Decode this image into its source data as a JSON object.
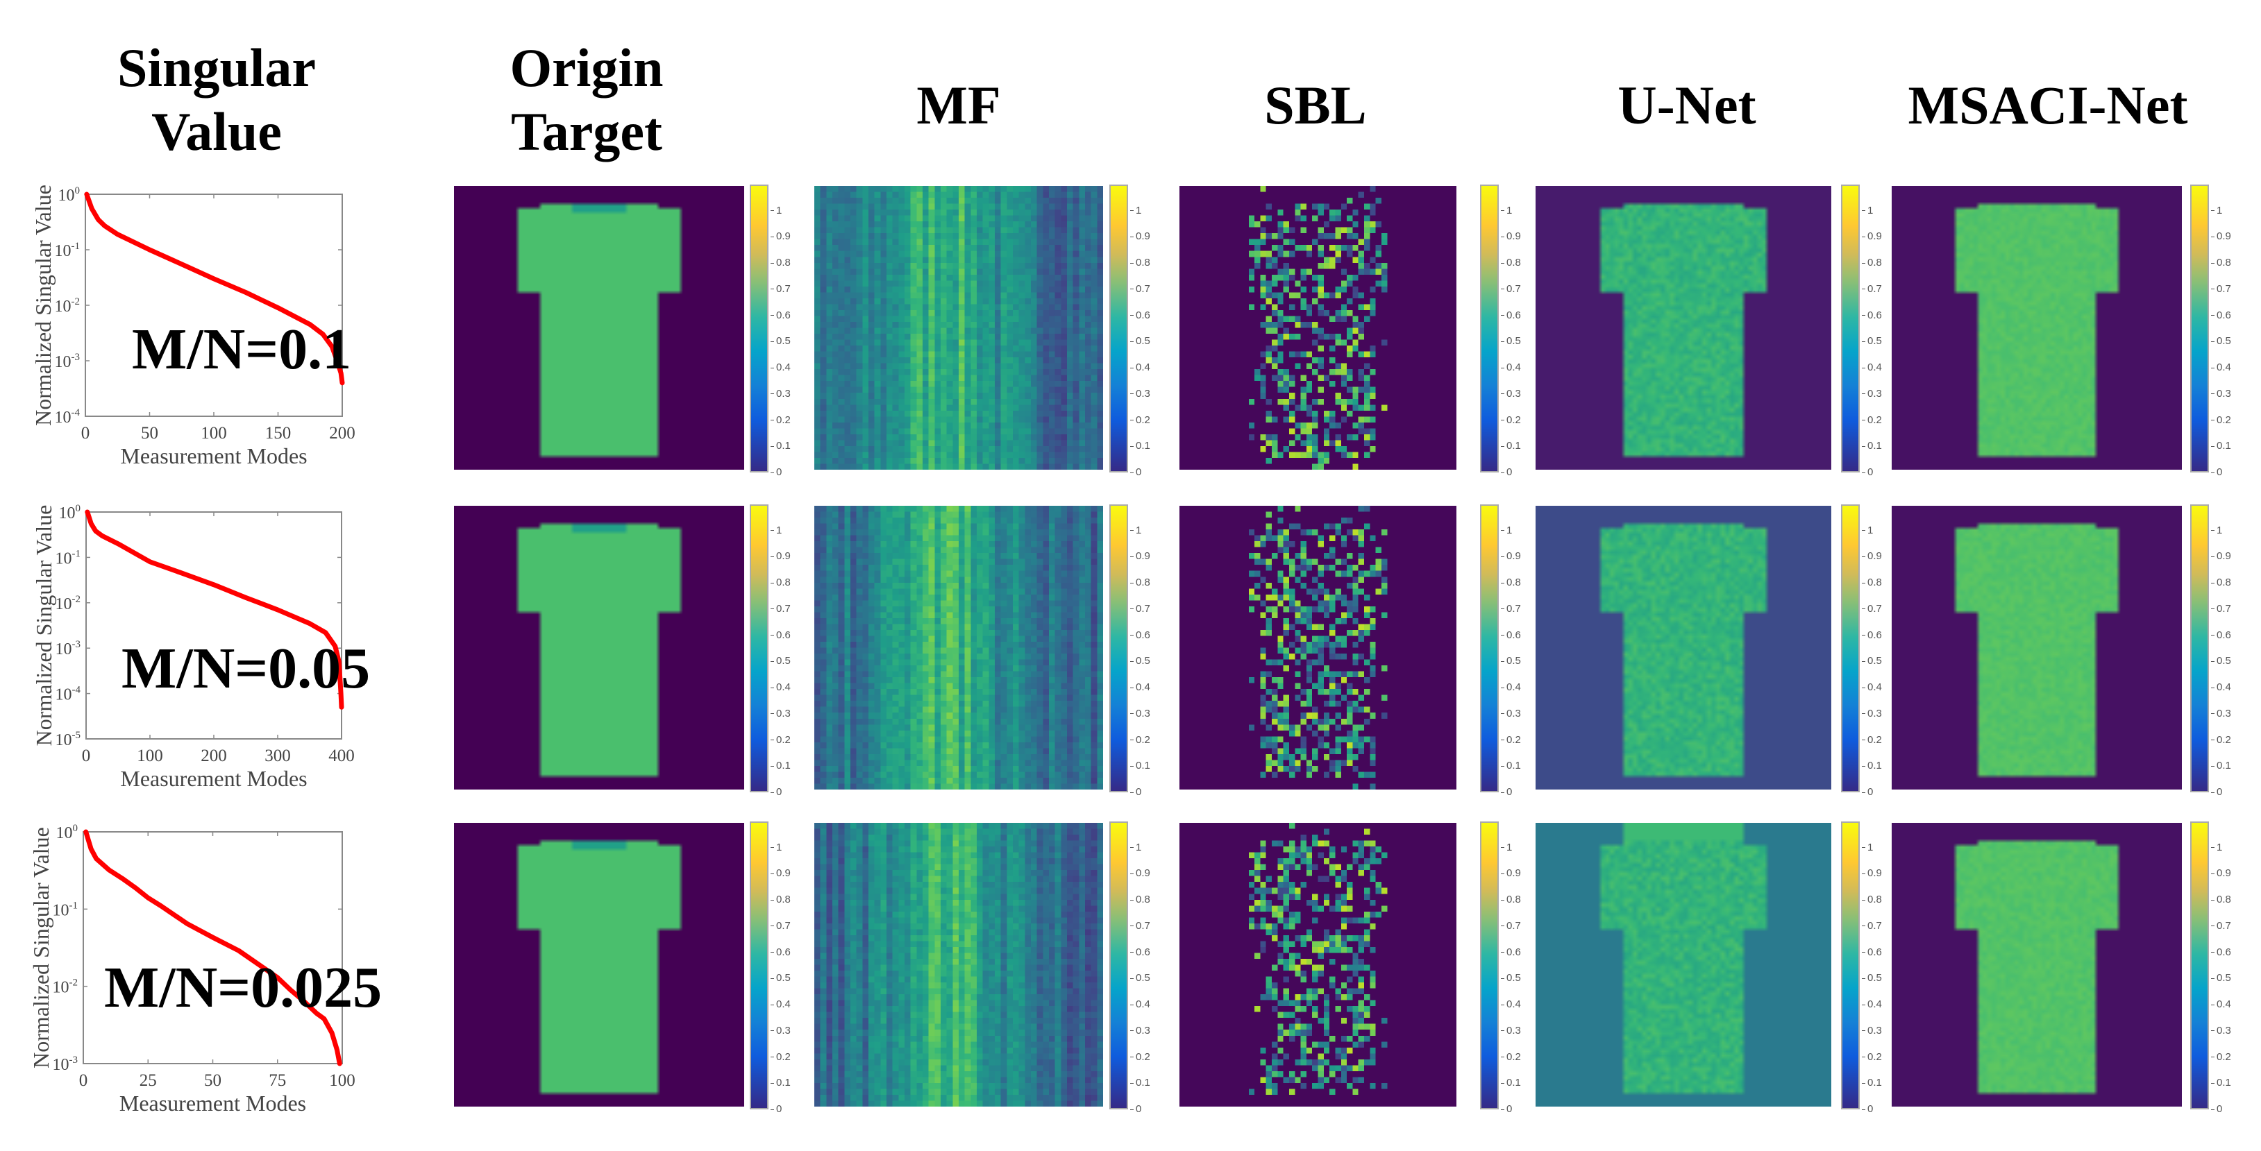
{
  "headers": {
    "singular_value": [
      "Singular",
      "Value"
    ],
    "origin_target": [
      "Origin",
      "Target"
    ],
    "mf": "MF",
    "sbl": "SBL",
    "unet": "U-Net",
    "msaci": "MSACI-Net"
  },
  "rows": [
    {
      "ratio_label": "M/N=0.1"
    },
    {
      "ratio_label": "M/N=0.05"
    },
    {
      "ratio_label": "M/N=0.025"
    }
  ],
  "colorbar": {
    "ticks": [
      "0",
      "0.1",
      "0.2",
      "0.3",
      "0.4",
      "0.5",
      "0.6",
      "0.7",
      "0.8",
      "0.9",
      "1"
    ],
    "max": 1.1
  },
  "chart_data": [
    {
      "type": "line",
      "title": "M/N=0.1",
      "xlabel": "Measurement Modes",
      "ylabel": "Normalized Singular Value",
      "yscale": "log",
      "xlim": [
        0,
        200
      ],
      "ylim": [
        0.0001,
        1
      ],
      "xticks": [
        "0",
        "50",
        "100",
        "150",
        "200"
      ],
      "yticks_exp": [
        "0",
        "-1",
        "-2",
        "-3",
        "-4"
      ],
      "series": [
        {
          "name": "singular values",
          "color": "#ff0000",
          "x": [
            1,
            5,
            10,
            15,
            25,
            50,
            75,
            100,
            125,
            150,
            175,
            185,
            192,
            196,
            199,
            200
          ],
          "y": [
            1,
            0.55,
            0.35,
            0.27,
            0.19,
            0.1,
            0.055,
            0.03,
            0.017,
            0.009,
            0.0045,
            0.003,
            0.0018,
            0.001,
            0.0006,
            0.0004
          ]
        }
      ]
    },
    {
      "type": "line",
      "title": "M/N=0.05",
      "xlabel": "Measurement Modes",
      "ylabel": "Normalized Singular Value",
      "yscale": "log",
      "xlim": [
        0,
        400
      ],
      "ylim": [
        1e-05,
        1
      ],
      "xticks": [
        "0",
        "100",
        "200",
        "300",
        "400"
      ],
      "yticks_exp": [
        "0",
        "-1",
        "-2",
        "-3",
        "-4",
        "-5"
      ],
      "series": [
        {
          "name": "singular values",
          "color": "#ff0000",
          "x": [
            2,
            8,
            15,
            25,
            50,
            100,
            150,
            200,
            250,
            300,
            350,
            375,
            390,
            396,
            399,
            400
          ],
          "y": [
            1,
            0.55,
            0.38,
            0.3,
            0.2,
            0.08,
            0.045,
            0.025,
            0.013,
            0.007,
            0.0035,
            0.0022,
            0.0011,
            0.0005,
            0.0001,
            5e-05
          ]
        }
      ]
    },
    {
      "type": "line",
      "title": "M/N=0.025",
      "xlabel": "Measurement Modes",
      "ylabel": "Normalized Singular Value",
      "yscale": "log",
      "xlim": [
        0,
        100
      ],
      "ylim": [
        0.001,
        1
      ],
      "xticks": [
        "0",
        "25",
        "50",
        "75",
        "100"
      ],
      "yticks_exp": [
        "0",
        "-1",
        "-2",
        "-3"
      ],
      "series": [
        {
          "name": "singular values",
          "color": "#ff0000",
          "x": [
            1,
            3,
            5,
            10,
            15,
            20,
            25,
            30,
            40,
            50,
            60,
            70,
            75,
            80,
            85,
            90,
            93,
            96,
            98,
            99
          ],
          "y": [
            1,
            0.6,
            0.45,
            0.32,
            0.25,
            0.19,
            0.14,
            0.11,
            0.065,
            0.043,
            0.029,
            0.017,
            0.013,
            0.009,
            0.0065,
            0.0045,
            0.0038,
            0.0025,
            0.0015,
            0.001
          ]
        }
      ]
    }
  ]
}
